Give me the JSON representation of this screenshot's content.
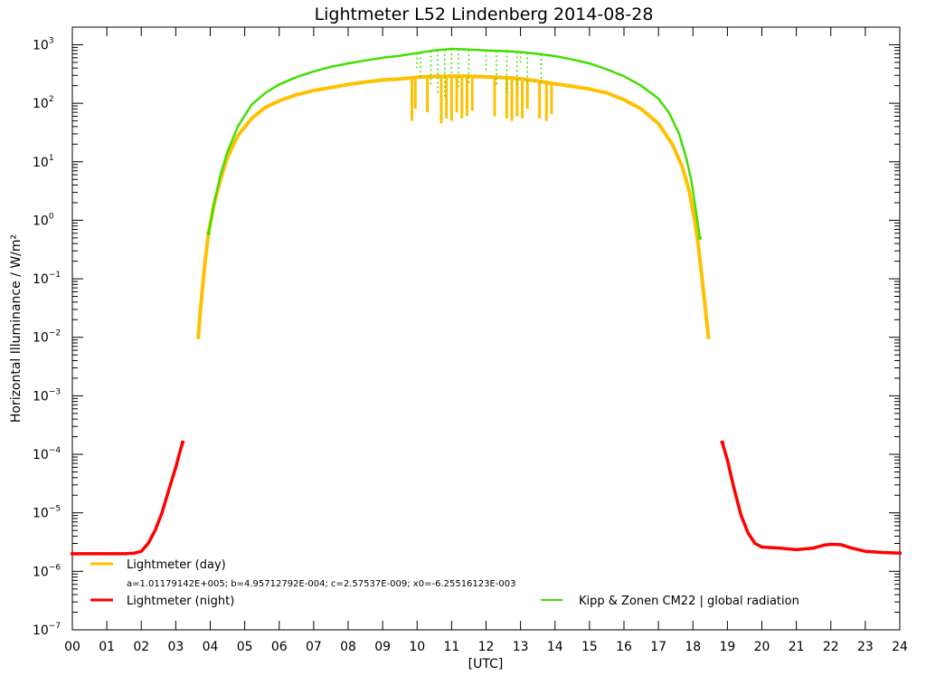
{
  "chart_data": {
    "type": "scatter",
    "title": "Lightmeter L52 Lindenberg    2014-08-28",
    "xlabel": "[UTC]",
    "ylabel": "Horizontal Illuminance / W/m²",
    "xlim": [
      0,
      24
    ],
    "ylim": [
      1e-07,
      2000
    ],
    "yscale": "log",
    "x_tick_labels": [
      "00",
      "01",
      "02",
      "03",
      "04",
      "05",
      "06",
      "07",
      "08",
      "09",
      "10",
      "11",
      "12",
      "13",
      "14",
      "15",
      "16",
      "17",
      "18",
      "19",
      "20",
      "21",
      "22",
      "23",
      "24"
    ],
    "y_tick_labels": [
      {
        "value": 1e-07,
        "mantissa": "10",
        "exp": "−7"
      },
      {
        "value": 1e-06,
        "mantissa": "10",
        "exp": "−6"
      },
      {
        "value": 1e-05,
        "mantissa": "10",
        "exp": "−5"
      },
      {
        "value": 0.0001,
        "mantissa": "10",
        "exp": "−4"
      },
      {
        "value": 0.001,
        "mantissa": "10",
        "exp": "−3"
      },
      {
        "value": 0.01,
        "mantissa": "10",
        "exp": "−2"
      },
      {
        "value": 0.1,
        "mantissa": "10",
        "exp": "−1"
      },
      {
        "value": 1,
        "mantissa": "10",
        "exp": "0"
      },
      {
        "value": 10,
        "mantissa": "10",
        "exp": "1"
      },
      {
        "value": 100,
        "mantissa": "10",
        "exp": "2"
      },
      {
        "value": 1000,
        "mantissa": "10",
        "exp": "3"
      }
    ],
    "legend": [
      {
        "label": "Lightmeter (day)",
        "color": "#ffc000"
      },
      {
        "label": "a=1.01179142E+005; b=4.95712792E-004; c=2.57537E-009; x0=-6.25516123E-003"
      },
      {
        "label": "Lightmeter (night)",
        "color": "#ff0000"
      },
      {
        "label": "Kipp & Zonen CM22 | global radiation",
        "color": "#40e000"
      }
    ],
    "series": [
      {
        "name": "Lightmeter (night)",
        "color": "#ff0000",
        "segments": [
          [
            [
              0,
              2e-06
            ],
            [
              1,
              2e-06
            ],
            [
              1.5,
              2e-06
            ],
            [
              1.8,
              2.05e-06
            ],
            [
              2.0,
              2.2e-06
            ],
            [
              2.2,
              3e-06
            ],
            [
              2.4,
              5e-06
            ],
            [
              2.6,
              1e-05
            ],
            [
              2.8,
              2.5e-05
            ],
            [
              3.0,
              6e-05
            ],
            [
              3.1,
              0.0001
            ],
            [
              3.2,
              0.00016
            ]
          ],
          [
            [
              18.85,
              0.00016
            ],
            [
              19.0,
              8e-05
            ],
            [
              19.2,
              2.5e-05
            ],
            [
              19.4,
              9e-06
            ],
            [
              19.6,
              4.5e-06
            ],
            [
              19.8,
              3e-06
            ],
            [
              20.0,
              2.6e-06
            ],
            [
              20.5,
              2.5e-06
            ],
            [
              21.0,
              2.35e-06
            ],
            [
              21.5,
              2.5e-06
            ],
            [
              21.8,
              2.8e-06
            ],
            [
              22.0,
              2.9e-06
            ],
            [
              22.3,
              2.85e-06
            ],
            [
              22.6,
              2.5e-06
            ],
            [
              23.0,
              2.2e-06
            ],
            [
              23.5,
              2.1e-06
            ],
            [
              24.0,
              2.05e-06
            ]
          ]
        ]
      },
      {
        "name": "Lightmeter (day)",
        "color": "#ffc000",
        "segments": [
          [
            [
              3.65,
              0.01
            ],
            [
              3.75,
              0.05
            ],
            [
              3.85,
              0.2
            ],
            [
              3.95,
              0.6
            ],
            [
              4.1,
              1.8
            ],
            [
              4.3,
              5
            ],
            [
              4.5,
              12
            ],
            [
              4.8,
              28
            ],
            [
              5.2,
              55
            ],
            [
              5.6,
              85
            ],
            [
              6.0,
              110
            ],
            [
              6.5,
              140
            ],
            [
              7.0,
              165
            ],
            [
              7.5,
              185
            ],
            [
              8.0,
              210
            ],
            [
              8.5,
              230
            ],
            [
              9.0,
              250
            ],
            [
              9.5,
              260
            ],
            [
              9.8,
              270
            ],
            [
              10.2,
              285
            ],
            [
              10.8,
              290
            ],
            [
              11.5,
              290
            ],
            [
              12.2,
              280
            ],
            [
              12.8,
              270
            ],
            [
              13.5,
              240
            ],
            [
              14.0,
              215
            ],
            [
              14.5,
              195
            ],
            [
              15.0,
              175
            ],
            [
              15.5,
              150
            ],
            [
              16.0,
              115
            ],
            [
              16.5,
              80
            ],
            [
              17.0,
              45
            ],
            [
              17.4,
              20
            ],
            [
              17.7,
              8
            ],
            [
              17.9,
              3
            ],
            [
              18.05,
              1
            ],
            [
              18.15,
              0.4
            ],
            [
              18.25,
              0.12
            ],
            [
              18.35,
              0.035
            ],
            [
              18.45,
              0.01
            ]
          ]
        ],
        "dips": [
          [
            9.85,
            50
          ],
          [
            9.95,
            80
          ],
          [
            10.3,
            70
          ],
          [
            10.7,
            45
          ],
          [
            10.85,
            55
          ],
          [
            11.0,
            50
          ],
          [
            11.15,
            70
          ],
          [
            11.3,
            55
          ],
          [
            11.45,
            60
          ],
          [
            11.6,
            75
          ],
          [
            12.25,
            60
          ],
          [
            12.6,
            55
          ],
          [
            12.75,
            50
          ],
          [
            12.9,
            60
          ],
          [
            13.05,
            55
          ],
          [
            13.2,
            80
          ],
          [
            13.55,
            55
          ],
          [
            13.75,
            50
          ],
          [
            13.9,
            65
          ]
        ]
      },
      {
        "name": "Kipp & Zonen CM22 | global radiation",
        "color": "#40e000",
        "segments": [
          [
            [
              3.95,
              0.6
            ],
            [
              4.05,
              1.2
            ],
            [
              4.15,
              2.5
            ],
            [
              4.3,
              6
            ],
            [
              4.5,
              15
            ],
            [
              4.8,
              40
            ],
            [
              5.2,
              95
            ],
            [
              5.6,
              150
            ],
            [
              6.0,
              210
            ],
            [
              6.5,
              280
            ],
            [
              7.0,
              350
            ],
            [
              7.5,
              420
            ],
            [
              8.0,
              480
            ],
            [
              8.5,
              540
            ],
            [
              9.0,
              600
            ],
            [
              9.5,
              650
            ],
            [
              10.0,
              720
            ],
            [
              10.5,
              800
            ],
            [
              11.0,
              850
            ],
            [
              11.5,
              830
            ],
            [
              12.0,
              800
            ],
            [
              12.5,
              780
            ],
            [
              13.0,
              750
            ],
            [
              13.5,
              700
            ],
            [
              14.0,
              640
            ],
            [
              14.5,
              560
            ],
            [
              15.0,
              480
            ],
            [
              15.5,
              380
            ],
            [
              16.0,
              290
            ],
            [
              16.5,
              200
            ],
            [
              17.0,
              120
            ],
            [
              17.3,
              70
            ],
            [
              17.6,
              30
            ],
            [
              17.8,
              12
            ],
            [
              17.95,
              5
            ],
            [
              18.05,
              2
            ],
            [
              18.15,
              0.8
            ],
            [
              18.2,
              0.5
            ]
          ]
        ],
        "dips": [
          [
            10.1,
            250
          ],
          [
            10.4,
            200
          ],
          [
            10.6,
            150
          ],
          [
            10.8,
            120
          ],
          [
            11.2,
            180
          ],
          [
            11.5,
            220
          ],
          [
            12.3,
            200
          ],
          [
            12.6,
            150
          ],
          [
            12.9,
            180
          ],
          [
            13.2,
            220
          ],
          [
            13.6,
            200
          ],
          [
            10.0,
            400
          ],
          [
            11.0,
            300
          ],
          [
            12.0,
            350
          ],
          [
            13.0,
            450
          ]
        ]
      }
    ]
  }
}
